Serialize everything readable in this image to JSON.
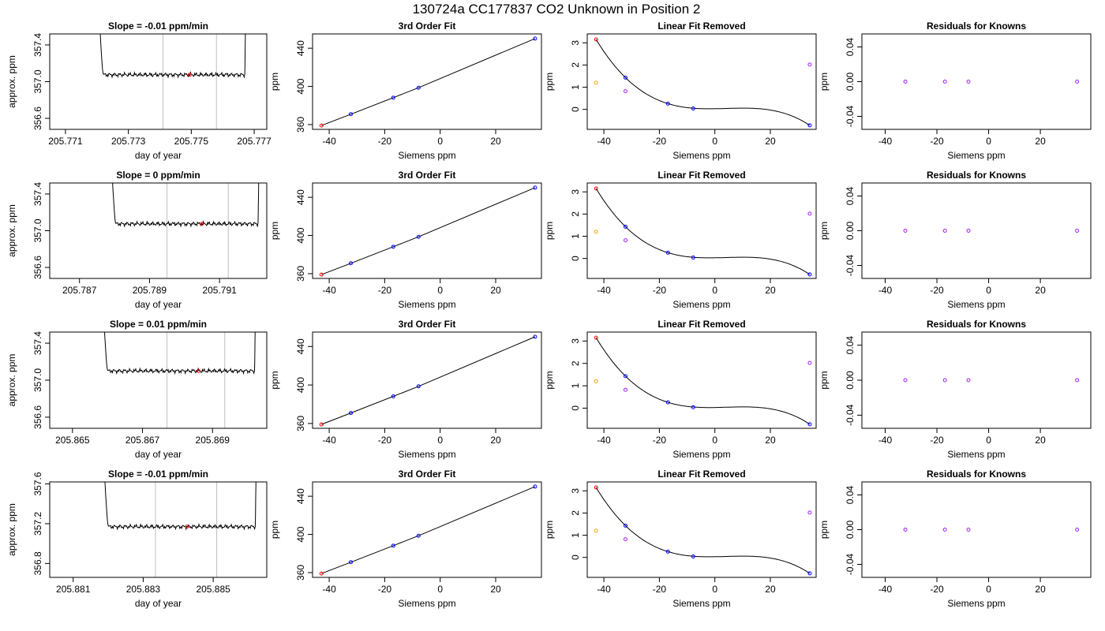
{
  "figure_title": "130724a     CC177837   CO2 Unknown in Position  2",
  "colors": {
    "trace": "#000000",
    "vline": "#bebebe",
    "marker": "#ff0000",
    "standards": "#0000ff",
    "offset_a": "#ffa500",
    "offset_b": "#a020f0",
    "fit": "#000000"
  },
  "chart_data": [
    {
      "row": 1,
      "type": "line",
      "title": "Slope =  -0.01  ppm/min",
      "xlabel": "day of year",
      "ylabel": "approx. ppm",
      "xlim": [
        205.7705,
        205.7774
      ],
      "ylim": [
        356.48,
        357.52
      ],
      "xticks": [
        "205.771",
        "205.773",
        "205.775",
        "205.777"
      ],
      "yticks": [
        "356.6",
        "357.0",
        "357.4"
      ],
      "trace": {
        "start": 205.7722,
        "end": 205.7767,
        "level": 357.075
      },
      "vlines": [
        205.7741,
        205.7758
      ],
      "marker": {
        "x": 205.77495,
        "y": 357.075
      }
    },
    {
      "row": 1,
      "type": "line",
      "title": "3rd Order Fit",
      "xlabel": "Siemens ppm",
      "ylabel": "ppm",
      "xlim": [
        -46,
        36.5
      ],
      "ylim": [
        355,
        455
      ],
      "xticks": [
        "-40",
        "-20",
        "0",
        "20"
      ],
      "yticks": [
        "360",
        "400",
        "440"
      ],
      "points": [
        [
          -42.8,
          359.0
        ],
        [
          -32.2,
          370.9
        ],
        [
          -16.9,
          388.2
        ],
        [
          -7.8,
          398.6
        ],
        [
          34.2,
          450.1
        ]
      ]
    },
    {
      "row": 1,
      "type": "scatter",
      "title": "Linear Fit Removed",
      "xlabel": "Siemens ppm",
      "ylabel": "ppm",
      "xlim": [
        -46,
        36.5
      ],
      "ylim": [
        -0.9,
        3.4
      ],
      "xticks": [
        "-40",
        "-20",
        "0",
        "20"
      ],
      "yticks": [
        "0",
        "1",
        "2",
        "3"
      ],
      "points": [
        [
          -42.8,
          3.15
        ],
        [
          -32.2,
          1.43
        ],
        [
          -16.9,
          0.26
        ],
        [
          -7.8,
          0.04
        ],
        [
          34.2,
          -0.72
        ]
      ],
      "offset_a": [
        [
          -42.8,
          1.2
        ]
      ],
      "offset_b": [
        [
          -32.2,
          0.82
        ],
        [
          34.2,
          2.02
        ]
      ]
    },
    {
      "row": 1,
      "type": "scatter",
      "title": "Residuals for Knowns",
      "xlabel": "Siemens ppm",
      "ylabel": "ppm",
      "xlim": [
        -49,
        39.5
      ],
      "ylim": [
        -0.055,
        0.055
      ],
      "xticks": [
        "-40",
        "-20",
        "0",
        "20"
      ],
      "yticks": [
        "-0.04",
        "0.00",
        "0.04"
      ],
      "points": [
        [
          -32.2,
          0
        ],
        [
          -16.9,
          0
        ],
        [
          -7.8,
          0
        ],
        [
          34.2,
          0
        ]
      ]
    },
    {
      "row": 2,
      "type": "line",
      "title": "Slope =  0  ppm/min",
      "xlabel": "day of year",
      "ylabel": "approx. ppm",
      "xlim": [
        205.78615,
        205.79235
      ],
      "ylim": [
        356.48,
        357.52
      ],
      "xticks": [
        "205.787",
        "205.789",
        "205.791"
      ],
      "yticks": [
        "356.6",
        "357.0",
        "357.4"
      ],
      "trace": {
        "start": 205.78803,
        "end": 205.7921,
        "level": 357.075
      },
      "vlines": [
        205.7895,
        205.79125
      ],
      "marker": {
        "x": 205.7905,
        "y": 357.075
      }
    },
    {
      "row": 2,
      "type": "line",
      "title": "3rd Order Fit",
      "xlabel": "Siemens ppm",
      "ylabel": "ppm",
      "xlim": [
        -46,
        36.5
      ],
      "ylim": [
        355,
        455
      ],
      "xticks": [
        "-40",
        "-20",
        "0",
        "20"
      ],
      "yticks": [
        "360",
        "400",
        "440"
      ],
      "points": [
        [
          -42.8,
          359.0
        ],
        [
          -32.2,
          370.9
        ],
        [
          -16.9,
          388.2
        ],
        [
          -7.8,
          398.6
        ],
        [
          34.2,
          450.1
        ]
      ]
    },
    {
      "row": 2,
      "type": "scatter",
      "title": "Linear Fit Removed",
      "xlabel": "Siemens ppm",
      "ylabel": "ppm",
      "xlim": [
        -46,
        36.5
      ],
      "ylim": [
        -0.9,
        3.4
      ],
      "xticks": [
        "-40",
        "-20",
        "0",
        "20"
      ],
      "yticks": [
        "0",
        "1",
        "2",
        "3"
      ],
      "points": [
        [
          -42.8,
          3.15
        ],
        [
          -32.2,
          1.43
        ],
        [
          -16.9,
          0.26
        ],
        [
          -7.8,
          0.04
        ],
        [
          34.2,
          -0.72
        ]
      ],
      "offset_a": [
        [
          -42.8,
          1.2
        ]
      ],
      "offset_b": [
        [
          -32.2,
          0.82
        ],
        [
          34.2,
          2.02
        ]
      ]
    },
    {
      "row": 2,
      "type": "scatter",
      "title": "Residuals for Knowns",
      "xlabel": "Siemens ppm",
      "ylabel": "ppm",
      "xlim": [
        -49,
        39.5
      ],
      "ylim": [
        -0.055,
        0.055
      ],
      "xticks": [
        "-40",
        "-20",
        "0",
        "20"
      ],
      "yticks": [
        "-0.04",
        "0.00",
        "0.04"
      ],
      "points": [
        [
          -32.2,
          0
        ],
        [
          -16.9,
          0
        ],
        [
          -7.8,
          0
        ],
        [
          34.2,
          0
        ]
      ]
    },
    {
      "row": 3,
      "type": "line",
      "title": "Slope =  0.01  ppm/min",
      "xlabel": "day of year",
      "ylabel": "approx. ppm",
      "xlim": [
        205.86435,
        205.87055
      ],
      "ylim": [
        356.48,
        357.52
      ],
      "xticks": [
        "205.865",
        "205.867",
        "205.869"
      ],
      "yticks": [
        "356.6",
        "357.0",
        "357.4"
      ],
      "trace": {
        "start": 205.866,
        "end": 205.8702,
        "level": 357.1
      },
      "vlines": [
        205.8677,
        205.86935
      ],
      "marker": {
        "x": 205.8686,
        "y": 357.1
      }
    },
    {
      "row": 3,
      "type": "line",
      "title": "3rd Order Fit",
      "xlabel": "Siemens ppm",
      "ylabel": "ppm",
      "xlim": [
        -46,
        36.5
      ],
      "ylim": [
        355,
        455
      ],
      "xticks": [
        "-40",
        "-20",
        "0",
        "20"
      ],
      "yticks": [
        "360",
        "400",
        "440"
      ],
      "points": [
        [
          -42.8,
          359.0
        ],
        [
          -32.2,
          370.9
        ],
        [
          -16.9,
          388.2
        ],
        [
          -7.8,
          398.6
        ],
        [
          34.2,
          450.1
        ]
      ]
    },
    {
      "row": 3,
      "type": "scatter",
      "title": "Linear Fit Removed",
      "xlabel": "Siemens ppm",
      "ylabel": "ppm",
      "xlim": [
        -46,
        36.5
      ],
      "ylim": [
        -0.9,
        3.4
      ],
      "xticks": [
        "-40",
        "-20",
        "0",
        "20"
      ],
      "yticks": [
        "0",
        "1",
        "2",
        "3"
      ],
      "points": [
        [
          -42.8,
          3.15
        ],
        [
          -32.2,
          1.43
        ],
        [
          -16.9,
          0.26
        ],
        [
          -7.8,
          0.04
        ],
        [
          34.2,
          -0.72
        ]
      ],
      "offset_a": [
        [
          -42.8,
          1.2
        ]
      ],
      "offset_b": [
        [
          -32.2,
          0.82
        ],
        [
          34.2,
          2.02
        ]
      ]
    },
    {
      "row": 3,
      "type": "scatter",
      "title": "Residuals for Knowns",
      "xlabel": "Siemens ppm",
      "ylabel": "ppm",
      "xlim": [
        -49,
        39.5
      ],
      "ylim": [
        -0.055,
        0.055
      ],
      "xticks": [
        "-40",
        "-20",
        "0",
        "20"
      ],
      "yticks": [
        "-0.04",
        "0.00",
        "0.04"
      ],
      "points": [
        [
          -32.2,
          0
        ],
        [
          -16.9,
          0
        ],
        [
          -7.8,
          0
        ],
        [
          34.2,
          0
        ]
      ]
    },
    {
      "row": 4,
      "type": "line",
      "title": "Slope =  -0.01  ppm/min",
      "xlabel": "day of year",
      "ylabel": "approx. ppm",
      "xlim": [
        205.88033,
        205.88653
      ],
      "ylim": [
        356.66,
        357.62
      ],
      "xticks": [
        "205.881",
        "205.883",
        "205.885"
      ],
      "yticks": [
        "356.8",
        "357.2",
        "357.6"
      ],
      "trace": {
        "start": 205.882,
        "end": 205.8862,
        "level": 357.17
      },
      "vlines": [
        205.88335,
        205.8851
      ],
      "marker": {
        "x": 205.88425,
        "y": 357.17
      }
    },
    {
      "row": 4,
      "type": "line",
      "title": "3rd Order Fit",
      "xlabel": "Siemens ppm",
      "ylabel": "ppm",
      "xlim": [
        -46,
        36.5
      ],
      "ylim": [
        355,
        455
      ],
      "xticks": [
        "-40",
        "-20",
        "0",
        "20"
      ],
      "yticks": [
        "360",
        "400",
        "440"
      ],
      "points": [
        [
          -42.8,
          359.0
        ],
        [
          -32.2,
          370.9
        ],
        [
          -16.9,
          388.2
        ],
        [
          -7.8,
          398.6
        ],
        [
          34.2,
          450.1
        ]
      ]
    },
    {
      "row": 4,
      "type": "scatter",
      "title": "Linear Fit Removed",
      "xlabel": "Siemens ppm",
      "ylabel": "ppm",
      "xlim": [
        -46,
        36.5
      ],
      "ylim": [
        -0.9,
        3.4
      ],
      "xticks": [
        "-40",
        "-20",
        "0",
        "20"
      ],
      "yticks": [
        "0",
        "1",
        "2",
        "3"
      ],
      "points": [
        [
          -42.8,
          3.15
        ],
        [
          -32.2,
          1.43
        ],
        [
          -16.9,
          0.26
        ],
        [
          -7.8,
          0.04
        ],
        [
          34.2,
          -0.72
        ]
      ],
      "offset_a": [
        [
          -42.8,
          1.2
        ]
      ],
      "offset_b": [
        [
          -32.2,
          0.82
        ],
        [
          34.2,
          2.02
        ]
      ]
    },
    {
      "row": 4,
      "type": "scatter",
      "title": "Residuals for Knowns",
      "xlabel": "Siemens ppm",
      "ylabel": "ppm",
      "xlim": [
        -49,
        39.5
      ],
      "ylim": [
        -0.055,
        0.055
      ],
      "xticks": [
        "-40",
        "-20",
        "0",
        "20"
      ],
      "yticks": [
        "-0.04",
        "0.00",
        "0.04"
      ],
      "points": [
        [
          -32.2,
          0
        ],
        [
          -16.9,
          0
        ],
        [
          -7.8,
          0
        ],
        [
          34.2,
          0
        ]
      ]
    }
  ]
}
